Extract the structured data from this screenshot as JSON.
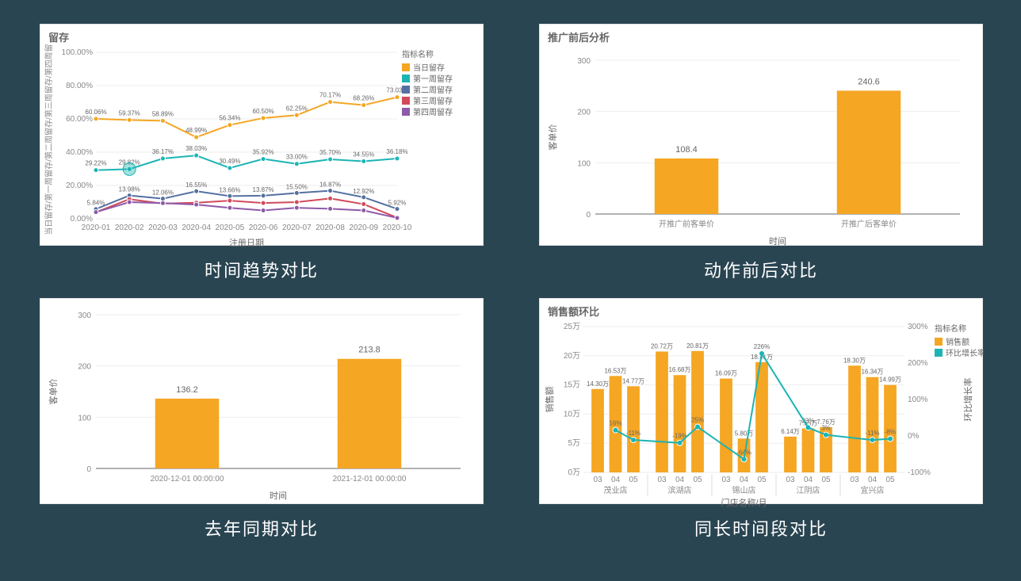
{
  "captions": {
    "tl": "时间趋势对比",
    "tr": "动作前后对比",
    "bl": "去年同期对比",
    "br": "同长时间段对比"
  },
  "colors": {
    "bg": "#2a4552",
    "panel": "#ffffff",
    "grid": "#eeeeee",
    "axis": "#666666",
    "bar": "#f5a623",
    "line_teal": "#1cb4b4"
  },
  "chart_tl": {
    "type": "line",
    "title": "留存",
    "xlabel": "注册日期",
    "ylabel": "当日留存/第一周留存/第二周留存/第三周留存/第四周留存（每/第%单位）",
    "legend_title": "指标名称",
    "categories": [
      "2020-01",
      "2020-02",
      "2020-03",
      "2020-04",
      "2020-05",
      "2020-06",
      "2020-07",
      "2020-08",
      "2020-09",
      "2020-10"
    ],
    "ylim": [
      0,
      100
    ],
    "ytick_step": 20,
    "ytick_suffix": ".00%",
    "series": [
      {
        "name": "当日留存",
        "color": "#f5a623",
        "values": [
          60.06,
          59.37,
          58.89,
          48.99,
          56.34,
          60.5,
          62.25,
          70.17,
          68.26,
          73.03
        ]
      },
      {
        "name": "第一周留存",
        "color": "#1cb4b4",
        "values": [
          29.22,
          29.82,
          36.17,
          38.03,
          30.49,
          35.92,
          33.0,
          35.7,
          34.55,
          36.18
        ]
      },
      {
        "name": "第二周留存",
        "color": "#5470a0",
        "values": [
          5.84,
          13.98,
          12.06,
          16.55,
          13.66,
          13.87,
          15.5,
          16.87,
          12.92,
          5.92
        ]
      },
      {
        "name": "第三周留存",
        "color": "#d14a5a",
        "values": [
          3.9,
          11.8,
          9.1,
          9.62,
          10.88,
          9.46,
          10.0,
          12.21,
          8.79,
          0.66
        ]
      },
      {
        "name": "第四周留存",
        "color": "#8e5aa8",
        "values": [
          3.97,
          9.98,
          9.38,
          8.5,
          6.57,
          5.0,
          6.6,
          6.0,
          5.0,
          0.5
        ]
      }
    ]
  },
  "chart_tr": {
    "type": "bar",
    "title": "推广前后分析",
    "xlabel": "时间",
    "ylabel": "客单价",
    "categories": [
      "开推广前客单价",
      "开推广后客单价"
    ],
    "values": [
      108.4,
      240.6
    ],
    "bar_color": "#f5a623",
    "ylim": [
      0,
      300
    ],
    "ytick_step": 100
  },
  "chart_bl": {
    "type": "bar",
    "title": "",
    "xlabel": "时间",
    "ylabel": "客单价",
    "categories": [
      "2020-12-01 00:00:00",
      "2021-12-01 00:00:00"
    ],
    "values": [
      136.2,
      213.8
    ],
    "bar_color": "#f5a623",
    "ylim": [
      0,
      300
    ],
    "ytick_step": 100
  },
  "chart_br": {
    "type": "bar+line",
    "title": "销售额环比",
    "xlabel": "门店名称/月",
    "ylabel_left": "销售额",
    "ylabel_right": "环比增长率",
    "legend_title": "指标名称",
    "legend_items": [
      {
        "name": "销售额",
        "color": "#f5a623",
        "type": "bar"
      },
      {
        "name": "环比增长率",
        "color": "#1cb4b4",
        "type": "line"
      }
    ],
    "groups": [
      "茂业店",
      "滨湖店",
      "锡山店",
      "江阴店",
      "宜兴店"
    ],
    "months": [
      "03",
      "04",
      "05"
    ],
    "bars": [
      [
        14.3,
        16.53,
        14.77
      ],
      [
        20.72,
        16.68,
        20.81
      ],
      [
        16.09,
        5.8,
        18.91
      ],
      [
        6.14,
        7.55,
        7.76
      ],
      [
        18.3,
        16.34,
        14.99
      ]
    ],
    "bar_labels": [
      [
        "14.30万",
        "16.53万",
        "14.77万"
      ],
      [
        "20.72万",
        "16.68万",
        "20.81万"
      ],
      [
        "16.09万",
        "5.80万",
        "18.91万"
      ],
      [
        "6.14万",
        "7.55万",
        "7.76万"
      ],
      [
        "18.30万",
        "16.34万",
        "14.99万"
      ]
    ],
    "line_values": [
      [
        null,
        16,
        -11
      ],
      [
        null,
        -19,
        25
      ],
      [
        null,
        -64,
        226
      ],
      [
        null,
        23,
        3
      ],
      [
        null,
        -11,
        -8
      ]
    ],
    "line_labels": [
      [
        "",
        "16%",
        "-11%"
      ],
      [
        "",
        "-19%",
        "25%"
      ],
      [
        "",
        "-64%",
        "226%"
      ],
      [
        "",
        "23%",
        "3%"
      ],
      [
        "",
        "-11%",
        "-8%"
      ]
    ],
    "bar_color": "#f5a623",
    "line_color": "#1cb4b4",
    "ylim_left": [
      0,
      25
    ],
    "ytick_left_step": 5,
    "ytick_left_suffix": "万",
    "ylim_right": [
      -100,
      300
    ],
    "ytick_right_step": 100,
    "ytick_right_suffix": "%"
  }
}
